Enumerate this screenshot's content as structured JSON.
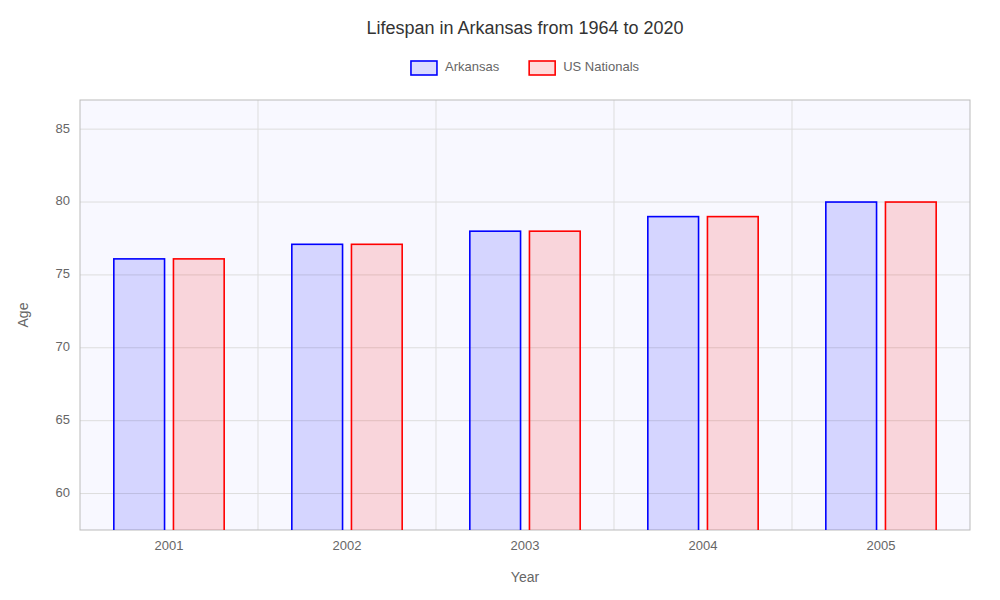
{
  "chart_data": {
    "type": "bar",
    "title": "Lifespan in Arkansas from 1964 to 2020",
    "xlabel": "Year",
    "ylabel": "Age",
    "categories": [
      "2001",
      "2002",
      "2003",
      "2004",
      "2005"
    ],
    "series": [
      {
        "name": "Arkansas",
        "color": "#0000ff",
        "values": [
          76.1,
          77.1,
          78.0,
          79.0,
          80.0
        ]
      },
      {
        "name": "US Nationals",
        "color": "#ff0000",
        "values": [
          76.1,
          77.1,
          78.0,
          79.0,
          80.0
        ]
      }
    ],
    "ylim": [
      57.5,
      87
    ],
    "yticks": [
      60,
      65,
      70,
      75,
      80,
      85
    ],
    "grid": true,
    "legend": "top"
  }
}
